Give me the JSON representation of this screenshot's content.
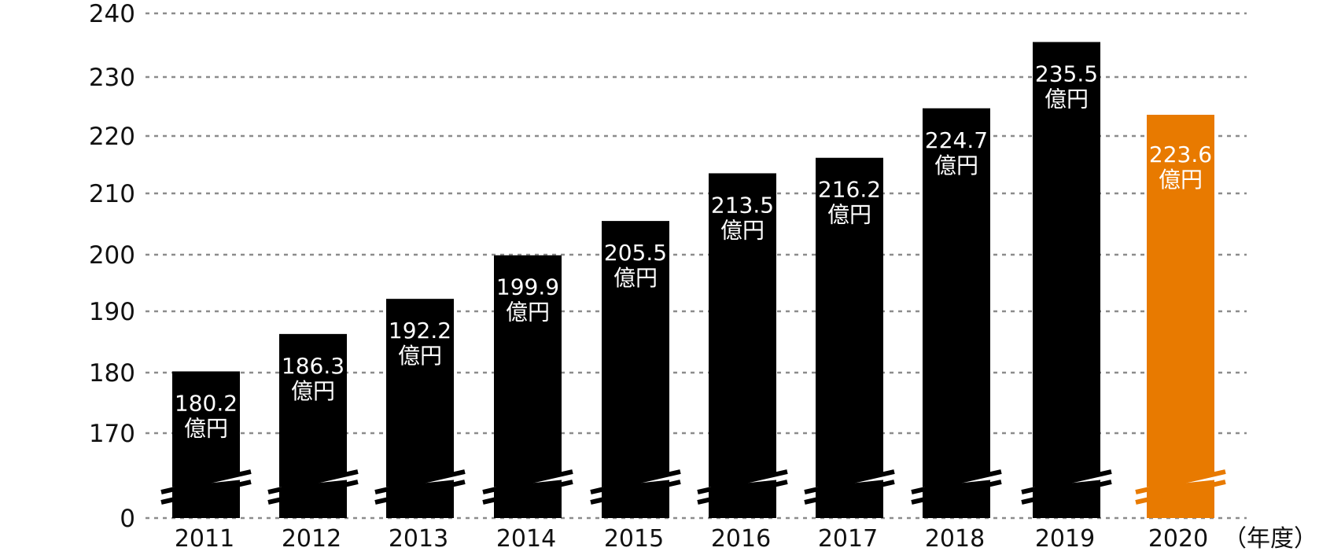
{
  "chart_data": {
    "type": "bar",
    "categories": [
      "2011",
      "2012",
      "2013",
      "2014",
      "2015",
      "2016",
      "2017",
      "2018",
      "2019",
      "2020"
    ],
    "values": [
      180.2,
      186.3,
      192.2,
      199.9,
      205.5,
      213.5,
      216.2,
      224.7,
      235.5,
      223.6
    ],
    "data_labels": [
      "180.2",
      "186.3",
      "192.2",
      "199.9",
      "205.5",
      "213.5",
      "216.2",
      "224.7",
      "235.5",
      "223.6"
    ],
    "label_unit": "億円",
    "x_unit_label": "（年度）",
    "y_ticks": [
      "240",
      "230",
      "220",
      "210",
      "200",
      "190",
      "180",
      "170",
      "0"
    ],
    "y_tick_values": [
      240,
      230,
      220,
      210,
      200,
      190,
      180,
      170,
      0
    ],
    "ylim": [
      0,
      240
    ],
    "axis_break": "between 0 and 170",
    "grid": "horizontal dashed",
    "highlight_category": "2020",
    "colors": {
      "bar": "#000000",
      "highlight": "#e87a00",
      "label": "#ffffff",
      "grid": "#8c8c8c",
      "text": "#111111"
    }
  }
}
